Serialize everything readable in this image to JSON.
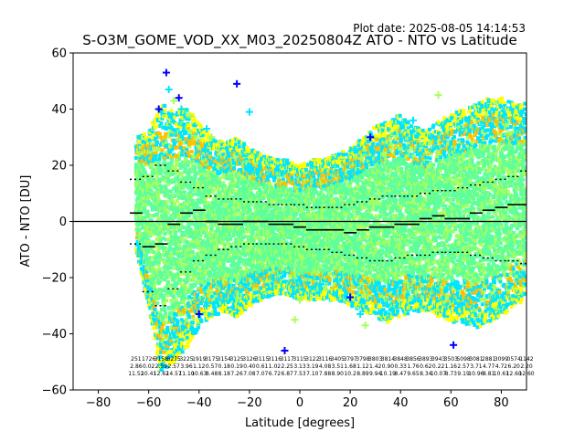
{
  "chart_data": {
    "type": "scatter",
    "title": "S-O3M_GOME_VOD_XX_M03_20250804Z ATO - NTO vs Latitude",
    "plot_date": "Plot date: 2025-08-05 14:14:53",
    "xlabel": "Latitude [degrees]",
    "ylabel": "ATO - NTO [DU]",
    "xlim": [
      -90,
      90
    ],
    "ylim": [
      -60,
      60
    ],
    "xticks": [
      -80,
      -60,
      -40,
      -20,
      0,
      20,
      40,
      60,
      80
    ],
    "yticks": [
      -60,
      -40,
      -20,
      0,
      20,
      40,
      60
    ],
    "grid": false,
    "legend": "none",
    "colors": [
      "#0000ff",
      "#00e5ff",
      "#5cff9c",
      "#a8ff5c",
      "#ffff00",
      "#ffc000"
    ],
    "envelope": {
      "x": [
        -65,
        -60,
        -55,
        -50,
        -45,
        -40,
        -35,
        -30,
        -25,
        -20,
        -15,
        -10,
        -5,
        0,
        5,
        10,
        15,
        20,
        25,
        30,
        35,
        40,
        45,
        50,
        55,
        60,
        65,
        70,
        75,
        80,
        85,
        90
      ],
      "upper": [
        30,
        32,
        42,
        40,
        40,
        36,
        30,
        28,
        30,
        26,
        24,
        22,
        22,
        20,
        22,
        22,
        24,
        26,
        30,
        34,
        36,
        38,
        34,
        32,
        36,
        38,
        40,
        42,
        44,
        44,
        42,
        42
      ],
      "lower": [
        -10,
        -30,
        -55,
        -50,
        -45,
        -38,
        -34,
        -32,
        -34,
        -30,
        -28,
        -26,
        -26,
        -28,
        -28,
        -28,
        -28,
        -30,
        -32,
        -34,
        -36,
        -34,
        -32,
        -32,
        -34,
        -36,
        -36,
        -38,
        -36,
        -34,
        -30,
        -28
      ]
    },
    "outliers": [
      {
        "x": -53,
        "y": 53
      },
      {
        "x": -52,
        "y": 47
      },
      {
        "x": -50,
        "y": 43
      },
      {
        "x": -48,
        "y": 44
      },
      {
        "x": -47,
        "y": 40
      },
      {
        "x": -44,
        "y": 38
      },
      {
        "x": -56,
        "y": 40
      },
      {
        "x": -37,
        "y": 33
      },
      {
        "x": -35,
        "y": 30
      },
      {
        "x": -25,
        "y": 49
      },
      {
        "x": -20,
        "y": 39
      },
      {
        "x": 0,
        "y": -28
      },
      {
        "x": 20,
        "y": -27
      },
      {
        "x": 24,
        "y": -33
      },
      {
        "x": 26,
        "y": -37
      },
      {
        "x": 28,
        "y": 30
      },
      {
        "x": 45,
        "y": 36
      },
      {
        "x": 55,
        "y": 45
      },
      {
        "x": 61,
        "y": -44
      },
      {
        "x": 66,
        "y": -36
      },
      {
        "x": 78,
        "y": 42
      },
      {
        "x": -40,
        "y": -33
      },
      {
        "x": -37,
        "y": -30
      },
      {
        "x": -2,
        "y": -35
      },
      {
        "x": -6,
        "y": -46
      }
    ],
    "bins_x": [
      -65,
      -60,
      -55,
      -50,
      -45,
      -40,
      -35,
      -30,
      -25,
      -20,
      -15,
      -10,
      -5,
      0,
      5,
      10,
      15,
      20,
      25,
      30,
      35,
      40,
      45,
      50,
      55,
      60,
      65,
      70,
      75,
      80,
      85,
      90
    ],
    "mean": [
      3,
      -9,
      -8,
      -1,
      3,
      4,
      0,
      -1,
      -1,
      0,
      0,
      -1,
      -1,
      -2,
      -3,
      -3,
      -3,
      -4,
      -3,
      -2,
      -2,
      -1,
      -1,
      1,
      2,
      1,
      1,
      3,
      4,
      5,
      6,
      6
    ],
    "upper_sd": [
      15,
      16,
      20,
      18,
      14,
      12,
      9,
      8,
      8,
      7,
      7,
      6,
      6,
      6,
      5,
      5,
      5,
      6,
      7,
      8,
      9,
      9,
      9,
      10,
      11,
      11,
      12,
      13,
      14,
      15,
      16,
      18
    ],
    "lower_sd": [
      -8,
      -25,
      -30,
      -24,
      -18,
      -14,
      -12,
      -10,
      -9,
      -8,
      -8,
      -8,
      -8,
      -9,
      -10,
      -10,
      -11,
      -12,
      -13,
      -14,
      -14,
      -13,
      -12,
      -12,
      -11,
      -11,
      -11,
      -12,
      -13,
      -14,
      -14,
      -15
    ],
    "counts": [
      "251",
      "1726",
      "3158",
      "3275",
      "3225",
      "1919",
      "3175",
      "3154",
      "3125",
      "3126",
      "3115",
      "3116",
      "3117",
      "3115",
      "3122",
      "3116",
      "3405",
      "3797",
      "3798",
      "3803",
      "3814",
      "3848",
      "3856",
      "3893",
      "3943",
      "3503",
      "5098",
      "3081",
      "2881",
      "3099",
      "0574",
      "1142"
    ],
    "means_label": [
      "2.86",
      "0.02",
      "2.59",
      "2.57",
      "3.96",
      "1.12",
      "0.57",
      "0.18",
      "0.19",
      "0.40",
      "0.61",
      "1.02",
      "2.25",
      "3.13",
      "3.19",
      "4.08",
      "3.51",
      "1.68",
      "1.12",
      "1.42",
      "0.90",
      "0.33",
      "1.76",
      "0.62",
      "0.22",
      "1.16",
      "2.57",
      "3.71",
      "4.77",
      "4.72",
      "6.20",
      "2.20"
    ],
    "stds_label": [
      "11.52",
      "10.41",
      "12.62",
      "14.57",
      "11.10",
      "10.63",
      "8.48",
      "8.18",
      "7.26",
      "7.08",
      "7.07",
      "6.72",
      "6.87",
      "7.53",
      "7.10",
      "7.88",
      "8.90",
      "10.2",
      "8.89",
      "9.94",
      "10.19",
      "8.47",
      "9.65",
      "8.34",
      "10.07",
      "8.73",
      "9.19",
      "10.96",
      "8.81",
      "10.61",
      "12.60",
      "12.60"
    ]
  }
}
